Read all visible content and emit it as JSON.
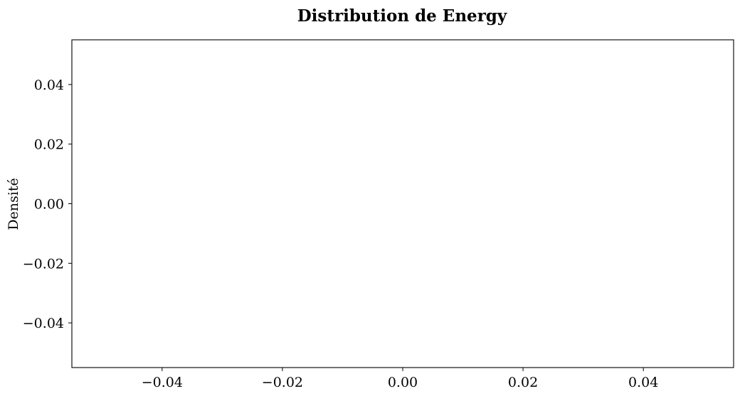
{
  "chart_data": {
    "type": "histogram",
    "title": "Distribution de Energy",
    "xlabel": "",
    "ylabel": "Densité",
    "xlim": [
      -0.055,
      0.055
    ],
    "ylim": [
      -0.055,
      0.055
    ],
    "x_ticks": [
      -0.04,
      -0.02,
      0.0,
      0.02,
      0.04
    ],
    "x_tick_labels": [
      "−0.04",
      "−0.02",
      "0.00",
      "0.02",
      "0.04"
    ],
    "y_ticks": [
      -0.04,
      -0.02,
      0.0,
      0.02,
      0.04
    ],
    "y_tick_labels": [
      "−0.04",
      "−0.02",
      "0.00",
      "0.02",
      "0.04"
    ],
    "values": [],
    "grid": false,
    "legend": "none"
  }
}
